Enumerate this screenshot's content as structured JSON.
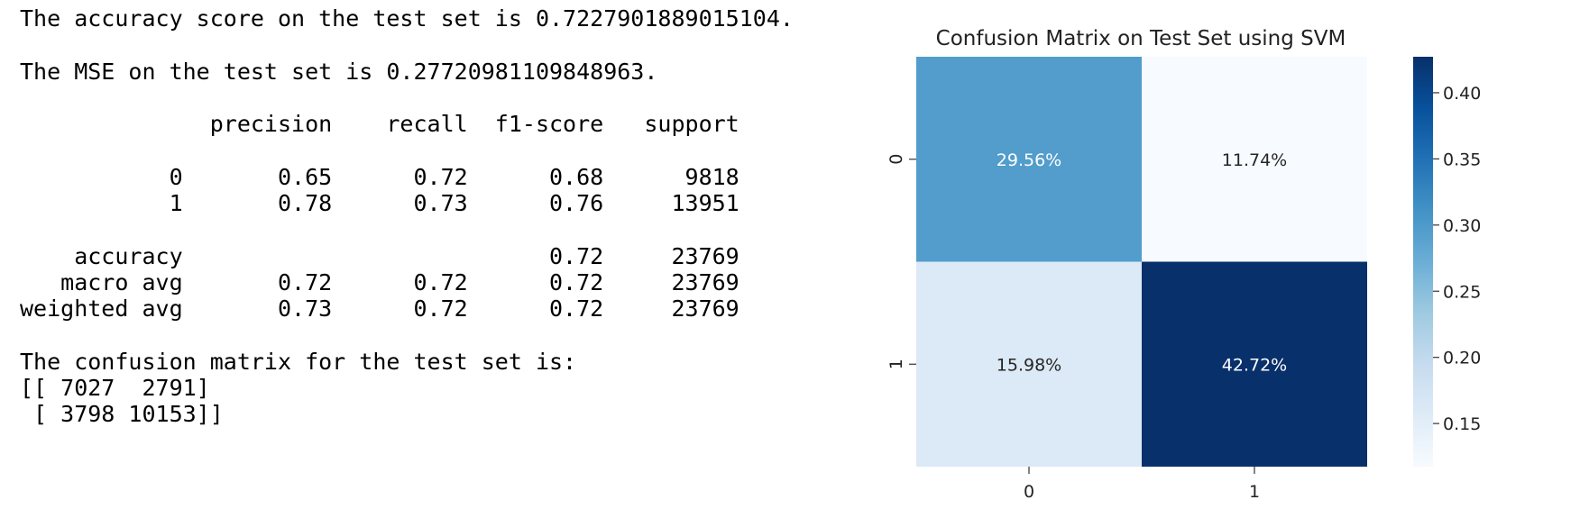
{
  "report": {
    "lines": [
      "The accuracy score on the test set is 0.7227901889015104.",
      "",
      "The MSE on the test set is 0.27720981109848963.",
      "",
      "              precision    recall  f1-score   support",
      "",
      "           0       0.65      0.72      0.68      9818",
      "           1       0.78      0.73      0.76     13951",
      "",
      "    accuracy                           0.72     23769",
      "   macro avg       0.72      0.72      0.72     23769",
      "weighted avg       0.73      0.72      0.72     23769",
      "",
      "The confusion matrix for the test set is:",
      "[[ 7027  2791]",
      " [ 3798 10153]]"
    ]
  },
  "chart_data": {
    "type": "heatmap",
    "title": "Confusion Matrix on Test Set using SVM",
    "x_categories": [
      "0",
      "1"
    ],
    "y_categories": [
      "0",
      "1"
    ],
    "values": [
      [
        0.2956,
        0.1174
      ],
      [
        0.1598,
        0.4272
      ]
    ],
    "cell_labels": [
      [
        "29.56%",
        "11.74%"
      ],
      [
        "15.98%",
        "42.72%"
      ]
    ],
    "colormap": "Blues",
    "colorbar": {
      "min": 0.1174,
      "max": 0.4272,
      "ticks": [
        0.15,
        0.2,
        0.25,
        0.3,
        0.35,
        0.4
      ],
      "tick_labels": [
        "0.15",
        "0.20",
        "0.25",
        "0.30",
        "0.35",
        "0.40"
      ]
    }
  }
}
